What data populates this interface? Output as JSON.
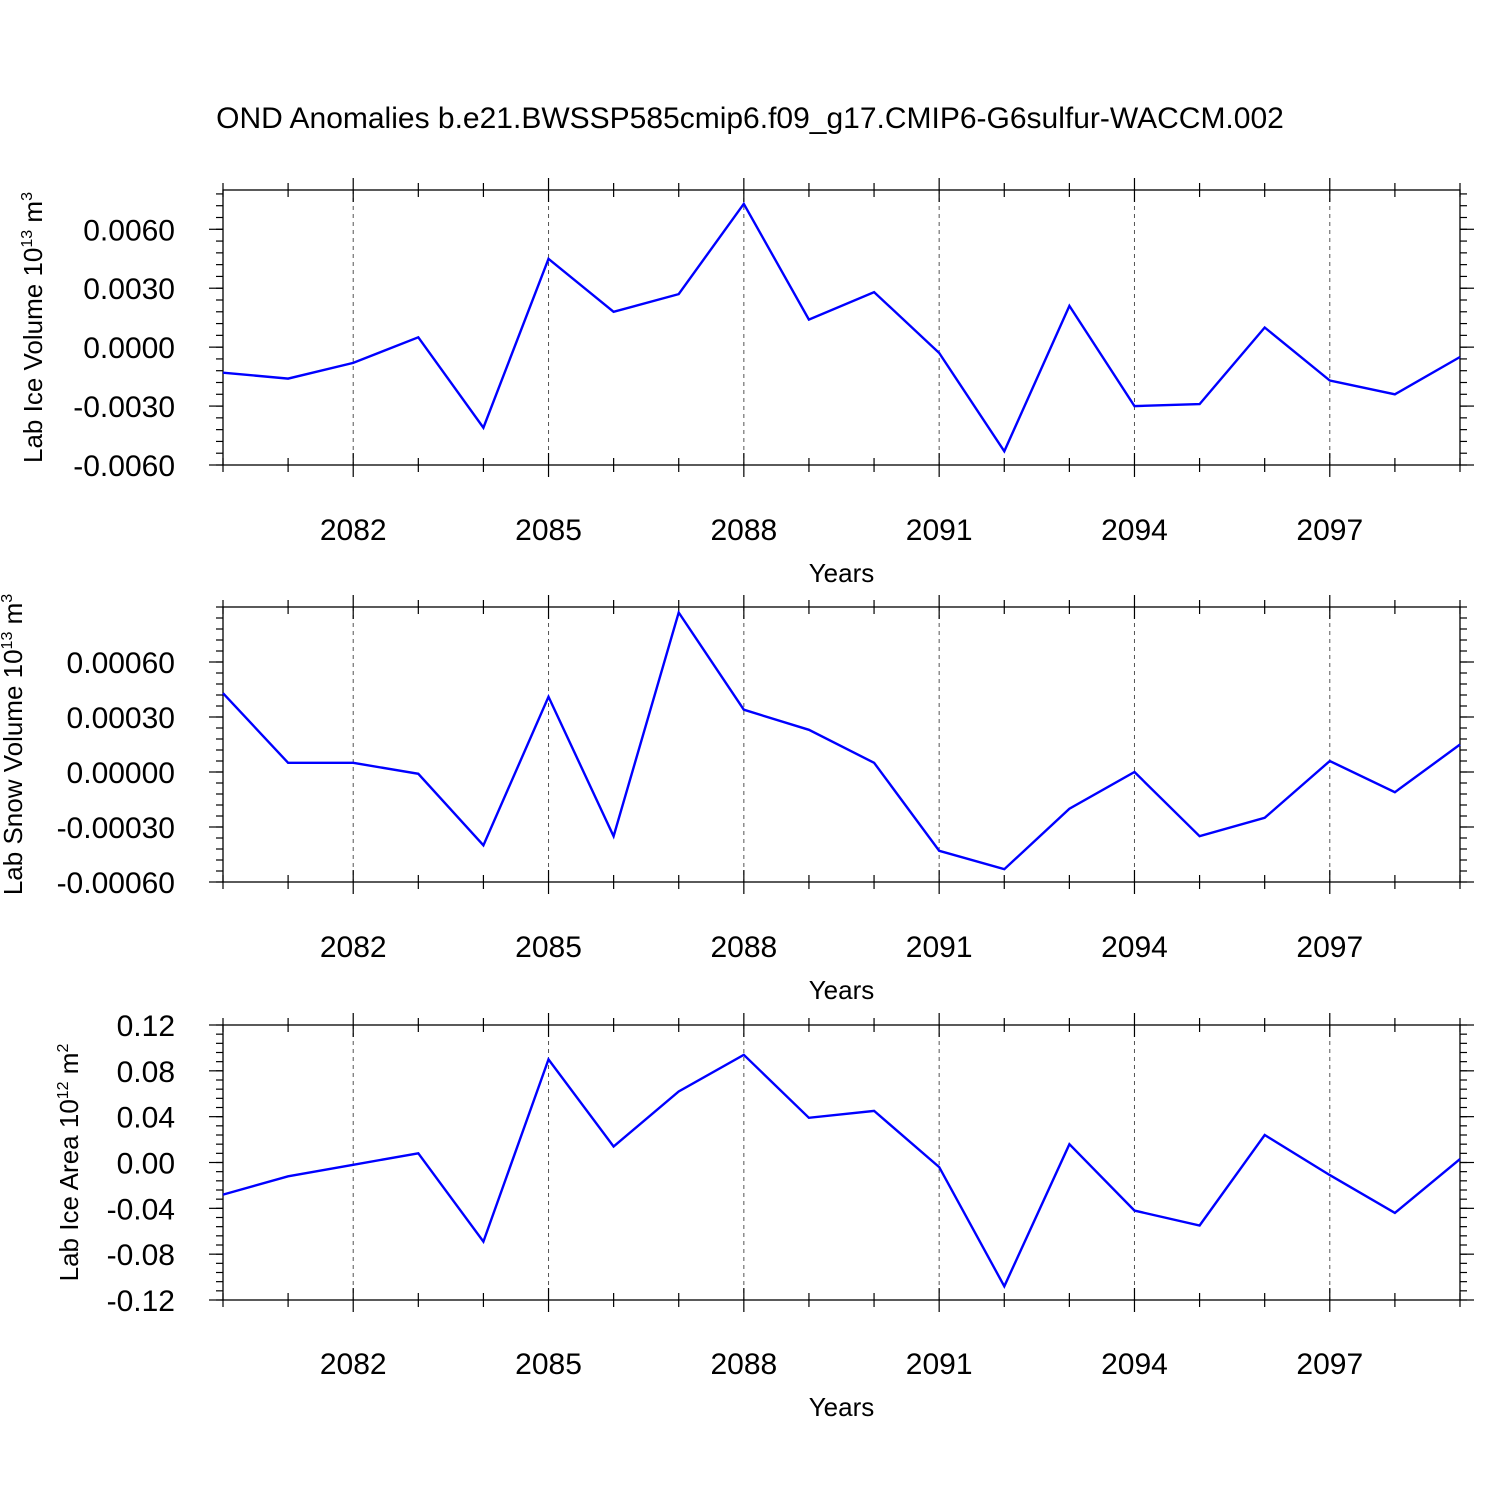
{
  "title": "OND Anomalies b.e21.BWSSP585cmip6.f09_g17.CMIP6-G6sulfur-WACCM.002",
  "colors": {
    "line": "#0000ff",
    "grid": "#555555"
  },
  "chart_data": [
    {
      "type": "line",
      "title": "OND Anomalies b.e21.BWSSP585cmip6.f09_g17.CMIP6-G6sulfur-WACCM.002",
      "xlabel": "Years",
      "ylabel": {
        "text": "Lab Ice Volume 10",
        "sup1": "13",
        "unit": " m",
        "sup2": "3"
      },
      "x": [
        2080,
        2081,
        2082,
        2083,
        2084,
        2085,
        2086,
        2087,
        2088,
        2089,
        2090,
        2091,
        2092,
        2093,
        2094,
        2095,
        2096,
        2097,
        2098,
        2099
      ],
      "series": [
        {
          "values": [
            -0.0013,
            -0.0016,
            -0.0008,
            0.0005,
            -0.0041,
            0.0045,
            0.0018,
            0.0027,
            0.0073,
            0.0014,
            0.0028,
            -0.0003,
            -0.0053,
            0.0021,
            -0.003,
            -0.0029,
            0.001,
            -0.0017,
            -0.0024,
            -0.0005
          ]
        }
      ],
      "xlim": [
        2080,
        2099
      ],
      "ylim": [
        -0.006,
        0.008
      ],
      "xticks": [
        2082,
        2085,
        2088,
        2091,
        2094,
        2097
      ],
      "xtick_labels": [
        "2082",
        "2085",
        "2088",
        "2091",
        "2094",
        "2097"
      ],
      "yticks": [
        -0.006,
        -0.003,
        0.0,
        0.003,
        0.006
      ],
      "ytick_labels": [
        "-0.0060",
        "-0.0030",
        "0.0000",
        "0.0030",
        "0.0060"
      ],
      "minor_y_step": 0.0006,
      "grid": "vertical-dashed"
    },
    {
      "type": "line",
      "xlabel": "Years",
      "ylabel": {
        "text": "Lab Snow Volume 10",
        "sup1": "13",
        "unit": " m",
        "sup2": "3"
      },
      "x": [
        2080,
        2081,
        2082,
        2083,
        2084,
        2085,
        2086,
        2087,
        2088,
        2089,
        2090,
        2091,
        2092,
        2093,
        2094,
        2095,
        2096,
        2097,
        2098,
        2099
      ],
      "series": [
        {
          "values": [
            0.00043,
            5e-05,
            5e-05,
            -1e-05,
            -0.0004,
            0.00041,
            -0.00035,
            0.00087,
            0.00034,
            0.00023,
            5e-05,
            -0.00043,
            -0.00053,
            -0.0002,
            0.0,
            -0.00035,
            -0.00025,
            6e-05,
            -0.00011,
            0.00015
          ]
        }
      ],
      "xlim": [
        2080,
        2099
      ],
      "ylim": [
        -0.0006,
        0.0009
      ],
      "xticks": [
        2082,
        2085,
        2088,
        2091,
        2094,
        2097
      ],
      "xtick_labels": [
        "2082",
        "2085",
        "2088",
        "2091",
        "2094",
        "2097"
      ],
      "yticks": [
        -0.0006,
        -0.0003,
        0.0,
        0.0003,
        0.0006
      ],
      "ytick_labels": [
        "-0.00060",
        "-0.00030",
        "0.00000",
        "0.00030",
        "0.00060"
      ],
      "minor_y_step": 6e-05,
      "grid": "vertical-dashed"
    },
    {
      "type": "line",
      "xlabel": "Years",
      "ylabel": {
        "text": "Lab Ice Area 10",
        "sup1": "12",
        "unit": " m",
        "sup2": "2"
      },
      "x": [
        2080,
        2081,
        2082,
        2083,
        2084,
        2085,
        2086,
        2087,
        2088,
        2089,
        2090,
        2091,
        2092,
        2093,
        2094,
        2095,
        2096,
        2097,
        2098,
        2099
      ],
      "series": [
        {
          "values": [
            -0.028,
            -0.012,
            -0.002,
            0.008,
            -0.069,
            0.09,
            0.014,
            0.062,
            0.094,
            0.039,
            0.045,
            -0.004,
            -0.108,
            0.016,
            -0.042,
            -0.055,
            0.024,
            -0.011,
            -0.044,
            0.003
          ]
        }
      ],
      "xlim": [
        2080,
        2099
      ],
      "ylim": [
        -0.12,
        0.12
      ],
      "xticks": [
        2082,
        2085,
        2088,
        2091,
        2094,
        2097
      ],
      "xtick_labels": [
        "2082",
        "2085",
        "2088",
        "2091",
        "2094",
        "2097"
      ],
      "yticks": [
        -0.12,
        -0.08,
        -0.04,
        0.0,
        0.04,
        0.08,
        0.12
      ],
      "ytick_labels": [
        "-0.12",
        "-0.08",
        "-0.04",
        "0.00",
        "0.04",
        "0.08",
        "0.12"
      ],
      "minor_y_step": 0.008,
      "grid": "vertical-dashed"
    }
  ]
}
